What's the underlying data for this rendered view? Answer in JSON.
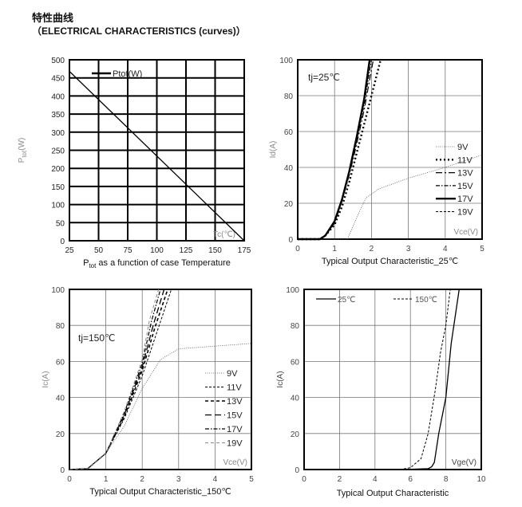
{
  "header": {
    "title_cn": "特性曲线",
    "title_en": "（ELECTRICAL CHARACTERISTICS (curves)）"
  },
  "chart_data": [
    {
      "type": "line",
      "title": "Ptot as a function of case Temperature",
      "title_parts": [
        "P",
        "tot",
        " as a function of case Temperature"
      ],
      "ylabel": "Ptot(W)",
      "ylabel_parts": [
        "P",
        "tot",
        "(W)"
      ],
      "xlabel": "Tc(℃)",
      "xlim": [
        25,
        175
      ],
      "ylim": [
        0,
        500
      ],
      "xticks": [
        25,
        50,
        75,
        100,
        125,
        150,
        175
      ],
      "yticks": [
        0,
        50,
        100,
        150,
        200,
        250,
        300,
        350,
        400,
        450,
        500
      ],
      "grid": true,
      "legend": "top-left",
      "series": [
        {
          "name": "Ptot(W)",
          "style": "solid",
          "x": [
            25,
            175
          ],
          "y": [
            468,
            0
          ]
        }
      ]
    },
    {
      "type": "line",
      "title": "Typical Output Characteristic_25℃",
      "ylabel": "Id(A)",
      "xlabel": "Vce(V)",
      "annotation": "tj=25℃",
      "annotation_parts": [
        "t",
        "j",
        "=25℃"
      ],
      "xlim": [
        0,
        5
      ],
      "ylim": [
        0,
        100
      ],
      "xticks": [
        0,
        1,
        2,
        3,
        4,
        5
      ],
      "yticks": [
        0,
        20,
        40,
        60,
        80,
        100
      ],
      "grid": true,
      "legend": "right",
      "series": [
        {
          "name": "9V",
          "style": "dotted-thin",
          "x": [
            0,
            1.35,
            1.6,
            1.85,
            2.2,
            3,
            4,
            5
          ],
          "y": [
            0,
            0,
            12,
            23,
            28,
            34,
            40,
            47
          ]
        },
        {
          "name": "11V",
          "style": "dotted-bold",
          "x": [
            0,
            0.6,
            0.75,
            1,
            1.2,
            1.4,
            1.6,
            1.8,
            2,
            2.25
          ],
          "y": [
            0,
            0,
            2,
            8,
            18,
            32,
            48,
            64,
            80,
            100
          ]
        },
        {
          "name": "13V",
          "style": "dash-dot-long",
          "x": [
            0,
            0.6,
            0.75,
            1,
            1.2,
            1.4,
            1.6,
            1.8,
            2.05
          ],
          "y": [
            0,
            0,
            2,
            9,
            21,
            36,
            53,
            72,
            100
          ]
        },
        {
          "name": "15V",
          "style": "dash-dot",
          "x": [
            0,
            0.6,
            0.75,
            1,
            1.2,
            1.4,
            1.6,
            1.8,
            2.0
          ],
          "y": [
            0,
            0,
            2,
            9,
            22,
            37,
            55,
            75,
            100
          ]
        },
        {
          "name": "17V",
          "style": "solid-bold",
          "x": [
            0,
            0.6,
            0.75,
            1,
            1.2,
            1.4,
            1.6,
            1.8,
            1.95
          ],
          "y": [
            0,
            0,
            2,
            10,
            22,
            38,
            57,
            78,
            100
          ]
        },
        {
          "name": "19V",
          "style": "dashed",
          "x": [
            0,
            0.6,
            0.75,
            1,
            1.2,
            1.4,
            1.6,
            1.8,
            1.97
          ],
          "y": [
            0,
            0,
            2,
            10,
            22,
            38,
            56,
            77,
            100
          ]
        }
      ]
    },
    {
      "type": "line",
      "title": "Typical Output Characteristic_150℃",
      "ylabel": "Ic(A)",
      "xlabel": "Vce(V)",
      "annotation": "tj=150℃",
      "xlim": [
        0,
        5
      ],
      "ylim": [
        0,
        100
      ],
      "xticks": [
        0,
        1,
        2,
        3,
        4,
        5
      ],
      "yticks": [
        0,
        20,
        40,
        60,
        80,
        100
      ],
      "grid": true,
      "legend": "right",
      "series": [
        {
          "name": "9V",
          "style": "dotted-thin",
          "x": [
            0,
            0.5,
            1,
            1.5,
            2,
            2.5,
            3,
            4,
            5
          ],
          "y": [
            0,
            0.5,
            9,
            24,
            45,
            61,
            67,
            68.5,
            70
          ]
        },
        {
          "name": "11V",
          "style": "dashed",
          "x": [
            0,
            0.5,
            1,
            1.5,
            2,
            2.4,
            2.8
          ],
          "y": [
            0,
            0.5,
            9,
            28,
            52,
            76,
            100
          ]
        },
        {
          "name": "13V",
          "style": "dashed-bold",
          "x": [
            0,
            0.5,
            1,
            1.5,
            2,
            2.35,
            2.7
          ],
          "y": [
            0,
            0.5,
            9,
            29,
            55,
            79,
            100
          ]
        },
        {
          "name": "15V",
          "style": "long-dash",
          "x": [
            0,
            0.5,
            1,
            1.5,
            2,
            2.3,
            2.6
          ],
          "y": [
            0,
            0.5,
            9,
            30,
            57,
            80,
            100
          ]
        },
        {
          "name": "17V",
          "style": "dash-dot",
          "x": [
            0,
            0.5,
            1,
            1.5,
            2,
            2.25,
            2.5
          ],
          "y": [
            0,
            0.5,
            9,
            31,
            59,
            82,
            100
          ]
        },
        {
          "name": "19V",
          "style": "dashed-gray",
          "x": [
            0,
            0.5,
            1,
            1.5,
            2,
            2.2,
            2.45
          ],
          "y": [
            0,
            0.5,
            9,
            32,
            61,
            83,
            100
          ]
        }
      ]
    },
    {
      "type": "line",
      "title": "Typical Output Characteristic",
      "ylabel": "Ic(A)",
      "xlabel": "Vge(V)",
      "xlim": [
        0,
        10
      ],
      "ylim": [
        0,
        100
      ],
      "xticks": [
        0,
        2,
        4,
        6,
        8,
        10
      ],
      "yticks": [
        0,
        20,
        40,
        60,
        80,
        100
      ],
      "grid": true,
      "legend": "top-left",
      "series": [
        {
          "name": "25℃",
          "style": "solid",
          "x": [
            0,
            5.5,
            7,
            7.2,
            7.35,
            7.6,
            8,
            8.3,
            8.75
          ],
          "y": [
            0,
            0,
            0.5,
            1.5,
            4,
            20,
            40,
            70,
            100
          ]
        },
        {
          "name": "150℃",
          "style": "dashed",
          "x": [
            0,
            5.4,
            6,
            6.6,
            7,
            7.4,
            7.7,
            8,
            8.25
          ],
          "y": [
            0,
            0,
            1,
            6,
            20,
            44,
            65,
            80,
            100
          ]
        }
      ]
    }
  ]
}
